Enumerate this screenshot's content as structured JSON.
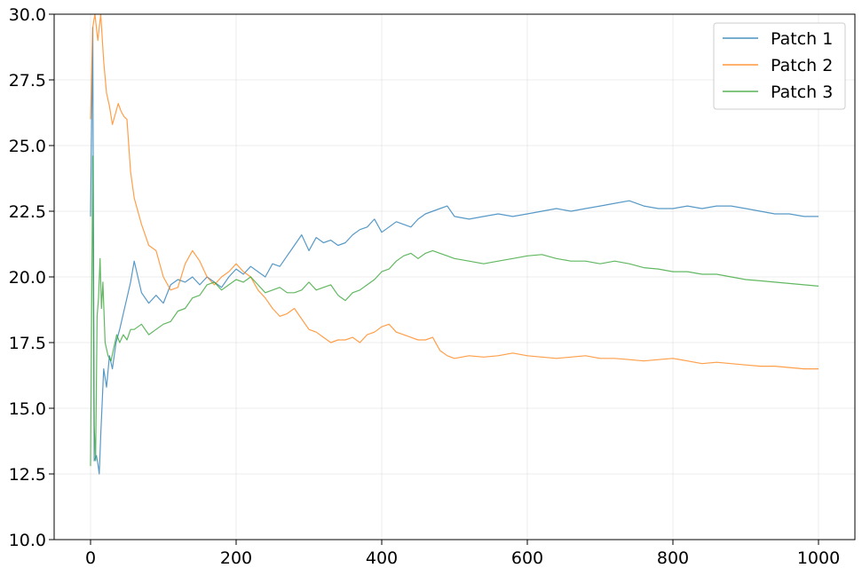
{
  "chart_data": {
    "type": "line",
    "title": "",
    "xlabel": "",
    "ylabel": "",
    "xlim": [
      -50,
      1050
    ],
    "ylim": [
      10.0,
      30.0
    ],
    "xticks": [
      0,
      200,
      400,
      600,
      800,
      1000
    ],
    "xtick_labels": [
      "0",
      "200",
      "400",
      "600",
      "800",
      "1000"
    ],
    "yticks": [
      10.0,
      12.5,
      15.0,
      17.5,
      20.0,
      22.5,
      25.0,
      27.5,
      30.0
    ],
    "ytick_labels": [
      "10.0",
      "12.5",
      "15.0",
      "17.5",
      "20.0",
      "22.5",
      "25.0",
      "27.5",
      "30.0"
    ],
    "grid": true,
    "legend_position": "top-right",
    "series": [
      {
        "name": "Patch 1",
        "color": "#1f77b4",
        "x": [
          0,
          3,
          5,
          8,
          10,
          12,
          14,
          18,
          22,
          26,
          30,
          35,
          40,
          45,
          50,
          55,
          60,
          70,
          80,
          90,
          100,
          110,
          120,
          130,
          140,
          150,
          160,
          170,
          180,
          190,
          200,
          210,
          220,
          230,
          240,
          250,
          260,
          270,
          280,
          290,
          300,
          310,
          320,
          330,
          340,
          350,
          360,
          370,
          380,
          390,
          400,
          410,
          420,
          430,
          440,
          450,
          460,
          470,
          480,
          490,
          500,
          520,
          540,
          560,
          580,
          600,
          620,
          640,
          660,
          680,
          700,
          720,
          740,
          760,
          780,
          800,
          820,
          840,
          860,
          880,
          900,
          920,
          940,
          960,
          980,
          1000
        ],
        "y": [
          22.3,
          29.5,
          13.0,
          13.2,
          12.9,
          12.5,
          14.0,
          16.5,
          15.8,
          17.0,
          16.5,
          17.5,
          18.0,
          18.6,
          19.2,
          19.8,
          20.6,
          19.4,
          19.0,
          19.3,
          19.0,
          19.7,
          19.9,
          19.8,
          20.0,
          19.7,
          20.0,
          19.8,
          19.6,
          20.0,
          20.3,
          20.1,
          20.4,
          20.2,
          20.0,
          20.5,
          20.4,
          20.8,
          21.2,
          21.6,
          21.0,
          21.5,
          21.3,
          21.4,
          21.2,
          21.3,
          21.6,
          21.8,
          21.9,
          22.2,
          21.7,
          21.9,
          22.1,
          22.0,
          21.9,
          22.2,
          22.4,
          22.5,
          22.6,
          22.7,
          22.3,
          22.2,
          22.3,
          22.4,
          22.3,
          22.4,
          22.5,
          22.6,
          22.5,
          22.6,
          22.7,
          22.8,
          22.9,
          22.7,
          22.6,
          22.6,
          22.7,
          22.6,
          22.7,
          22.7,
          22.6,
          22.5,
          22.4,
          22.4,
          22.3,
          22.3
        ]
      },
      {
        "name": "Patch 2",
        "color": "#ff7f0e",
        "x": [
          0,
          3,
          6,
          10,
          14,
          18,
          22,
          26,
          30,
          34,
          38,
          42,
          46,
          50,
          55,
          60,
          65,
          70,
          75,
          80,
          90,
          100,
          110,
          120,
          130,
          140,
          150,
          160,
          170,
          180,
          190,
          200,
          210,
          220,
          230,
          240,
          250,
          260,
          270,
          280,
          290,
          300,
          310,
          320,
          330,
          340,
          350,
          360,
          370,
          380,
          390,
          400,
          410,
          420,
          430,
          440,
          450,
          460,
          470,
          480,
          490,
          500,
          520,
          540,
          560,
          580,
          600,
          620,
          640,
          660,
          680,
          700,
          720,
          740,
          760,
          780,
          800,
          820,
          840,
          860,
          880,
          900,
          920,
          940,
          960,
          980,
          1000
        ],
        "y": [
          26.0,
          29.5,
          30.0,
          29.0,
          30.0,
          28.2,
          27.0,
          26.5,
          25.8,
          26.2,
          26.6,
          26.3,
          26.1,
          26.0,
          24.0,
          23.0,
          22.5,
          22.0,
          21.6,
          21.2,
          21.0,
          20.0,
          19.5,
          19.6,
          20.5,
          21.0,
          20.6,
          20.0,
          19.7,
          20.0,
          20.2,
          20.5,
          20.2,
          20.0,
          19.5,
          19.2,
          18.8,
          18.5,
          18.6,
          18.8,
          18.4,
          18.0,
          17.9,
          17.7,
          17.5,
          17.6,
          17.6,
          17.7,
          17.5,
          17.8,
          17.9,
          18.1,
          18.2,
          17.9,
          17.8,
          17.7,
          17.6,
          17.6,
          17.7,
          17.2,
          17.0,
          16.9,
          17.0,
          16.95,
          17.0,
          17.1,
          17.0,
          16.95,
          16.9,
          16.95,
          17.0,
          16.9,
          16.9,
          16.85,
          16.8,
          16.85,
          16.9,
          16.8,
          16.7,
          16.75,
          16.7,
          16.65,
          16.6,
          16.6,
          16.55,
          16.5,
          16.5
        ]
      },
      {
        "name": "Patch 3",
        "color": "#2ca02c",
        "x": [
          0,
          3,
          5,
          7,
          9,
          11,
          13,
          15,
          17,
          20,
          24,
          28,
          32,
          36,
          40,
          45,
          50,
          55,
          60,
          70,
          80,
          90,
          100,
          110,
          120,
          130,
          140,
          150,
          160,
          170,
          180,
          190,
          200,
          210,
          220,
          230,
          240,
          250,
          260,
          270,
          280,
          290,
          300,
          310,
          320,
          330,
          340,
          350,
          360,
          370,
          380,
          390,
          400,
          410,
          420,
          430,
          440,
          450,
          460,
          470,
          480,
          490,
          500,
          520,
          540,
          560,
          580,
          600,
          620,
          640,
          660,
          680,
          700,
          720,
          740,
          760,
          780,
          800,
          820,
          840,
          860,
          880,
          900,
          920,
          940,
          960,
          980,
          1000
        ],
        "y": [
          12.8,
          24.6,
          14.3,
          13.0,
          18.5,
          19.2,
          20.7,
          18.8,
          19.8,
          17.5,
          17.0,
          16.8,
          17.3,
          17.8,
          17.5,
          17.8,
          17.6,
          18.0,
          18.0,
          18.2,
          17.8,
          18.0,
          18.2,
          18.3,
          18.7,
          18.8,
          19.2,
          19.3,
          19.7,
          19.8,
          19.5,
          19.7,
          19.9,
          19.8,
          20.0,
          19.7,
          19.4,
          19.5,
          19.6,
          19.4,
          19.4,
          19.5,
          19.8,
          19.5,
          19.6,
          19.7,
          19.3,
          19.1,
          19.4,
          19.5,
          19.7,
          19.9,
          20.2,
          20.3,
          20.6,
          20.8,
          20.9,
          20.7,
          20.9,
          21.0,
          20.9,
          20.8,
          20.7,
          20.6,
          20.5,
          20.6,
          20.7,
          20.8,
          20.85,
          20.7,
          20.6,
          20.6,
          20.5,
          20.6,
          20.5,
          20.35,
          20.3,
          20.2,
          20.2,
          20.1,
          20.1,
          20.0,
          19.9,
          19.85,
          19.8,
          19.75,
          19.7,
          19.65
        ]
      }
    ]
  }
}
